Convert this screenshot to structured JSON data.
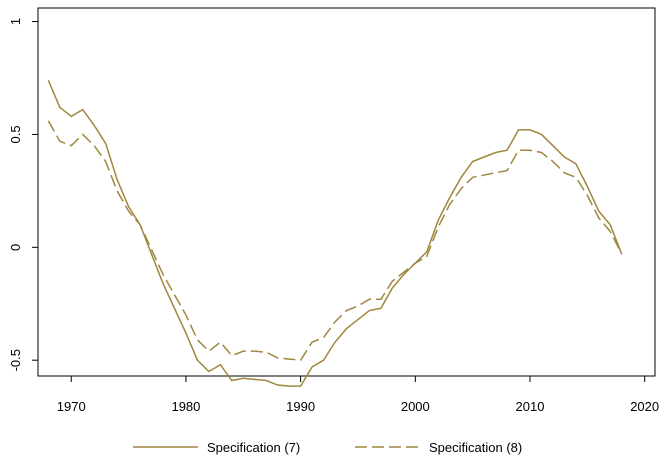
{
  "chart_data": {
    "type": "line",
    "x": [
      1968,
      1969,
      1970,
      1971,
      1972,
      1973,
      1974,
      1975,
      1976,
      1977,
      1978,
      1979,
      1980,
      1981,
      1982,
      1983,
      1984,
      1985,
      1986,
      1987,
      1988,
      1989,
      1990,
      1991,
      1992,
      1993,
      1994,
      1995,
      1996,
      1997,
      1998,
      1999,
      2000,
      2001,
      2002,
      2003,
      2004,
      2005,
      2006,
      2007,
      2008,
      2009,
      2010,
      2011,
      2012,
      2013,
      2014,
      2015,
      2016,
      2017,
      2018
    ],
    "series": [
      {
        "name": "Specification (7)",
        "color": "#a0873e",
        "dash": "solid",
        "values": [
          0.74,
          0.62,
          0.58,
          0.61,
          0.54,
          0.46,
          0.3,
          0.18,
          0.1,
          -0.03,
          -0.16,
          -0.27,
          -0.38,
          -0.5,
          -0.55,
          -0.52,
          -0.59,
          -0.58,
          -0.585,
          -0.59,
          -0.61,
          -0.615,
          -0.615,
          -0.53,
          -0.5,
          -0.42,
          -0.36,
          -0.32,
          -0.28,
          -0.27,
          -0.18,
          -0.12,
          -0.07,
          -0.02,
          0.12,
          0.22,
          0.31,
          0.38,
          0.4,
          0.42,
          0.43,
          0.52,
          0.52,
          0.5,
          0.45,
          0.4,
          0.37,
          0.27,
          0.16,
          0.1,
          -0.03
        ]
      },
      {
        "name": "Specification (8)",
        "color": "#a0873e",
        "dash": "dashed",
        "values": [
          0.56,
          0.47,
          0.45,
          0.5,
          0.45,
          0.38,
          0.25,
          0.16,
          0.1,
          -0.01,
          -0.12,
          -0.21,
          -0.3,
          -0.41,
          -0.46,
          -0.42,
          -0.48,
          -0.46,
          -0.46,
          -0.465,
          -0.49,
          -0.495,
          -0.5,
          -0.42,
          -0.4,
          -0.33,
          -0.28,
          -0.26,
          -0.23,
          -0.23,
          -0.15,
          -0.11,
          -0.07,
          -0.04,
          0.09,
          0.19,
          0.26,
          0.31,
          0.32,
          0.33,
          0.34,
          0.43,
          0.43,
          0.42,
          0.38,
          0.33,
          0.31,
          0.23,
          0.13,
          0.07,
          -0.03
        ]
      }
    ],
    "xlim": [
      1967.1,
      2020.9
    ],
    "xticks": [
      1970,
      1980,
      1990,
      2000,
      2010,
      2020
    ],
    "ylim": [
      -0.57,
      1.06
    ],
    "yticks": [
      -0.5,
      0,
      0.5,
      1
    ],
    "legend": "bottom"
  }
}
